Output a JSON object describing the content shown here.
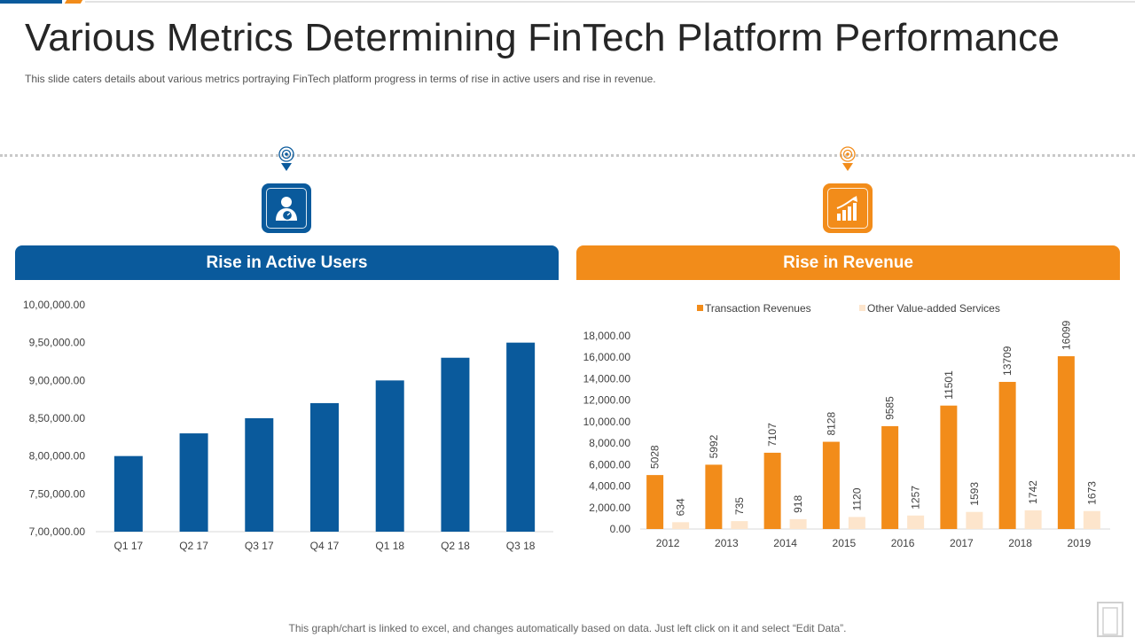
{
  "page": {
    "title": "Various Metrics Determining FinTech Platform Performance",
    "subtitle": "This slide caters details about various metrics portraying FinTech platform progress in terms of rise in active users and rise in revenue.",
    "footer_note": "This graph/chart is linked to excel, and changes automatically based on data. Just left click on it and select “Edit Data”."
  },
  "colors": {
    "blue": "#0a5a9c",
    "orange": "#f28c1a",
    "light_peach": "#fde5cc",
    "grid": "#d9d9d9"
  },
  "icons": {
    "left_pin": "location-pin-icon",
    "right_pin": "location-pin-icon",
    "left_tile": "user-dashboard-icon",
    "right_tile": "growth-chart-icon"
  },
  "panels": {
    "left_header": "Rise in Active Users",
    "right_header": "Rise in Revenue"
  },
  "chart_data": [
    {
      "type": "bar",
      "title": "Rise in Active Users",
      "categories": [
        "Q1 17",
        "Q2 17",
        "Q3 17",
        "Q4 17",
        "Q1 18",
        "Q2 18",
        "Q3 18"
      ],
      "values": [
        800000,
        830000,
        850000,
        870000,
        900000,
        930000,
        950000
      ],
      "ylim": [
        700000,
        1000000
      ],
      "yticks": [
        "7,00,000.00",
        "7,50,000.00",
        "8,00,000.00",
        "8,50,000.00",
        "9,00,000.00",
        "9,50,000.00",
        "10,00,000.00"
      ],
      "grid": false,
      "color": "#0a5a9c"
    },
    {
      "type": "bar",
      "title": "Rise in Revenue",
      "categories": [
        "2012",
        "2013",
        "2014",
        "2015",
        "2016",
        "2017",
        "2018",
        "2019"
      ],
      "series": [
        {
          "name": "Transaction Revenues",
          "values": [
            5028,
            5992,
            7107,
            8128,
            9585,
            11501,
            13709,
            16099
          ],
          "color": "#f28c1a"
        },
        {
          "name": "Other Value-added Services",
          "values": [
            634,
            735,
            918,
            1120,
            1257,
            1593,
            1742,
            1673
          ],
          "color": "#fde5cc"
        }
      ],
      "ylim": [
        0,
        18000
      ],
      "yticks": [
        "0.00",
        "2,000.00",
        "4,000.00",
        "6,000.00",
        "8,000.00",
        "10,000.00",
        "12,000.00",
        "14,000.00",
        "16,000.00",
        "18,000.00"
      ],
      "legend": "top",
      "grid": false,
      "data_labels": true
    }
  ]
}
